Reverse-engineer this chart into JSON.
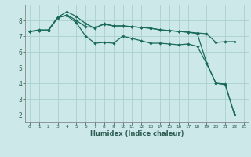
{
  "xlabel": "Humidex (Indice chaleur)",
  "bg_color": "#cce8e8",
  "grid_color": "#aacfcf",
  "line_color": "#1a6b5a",
  "xlim": [
    -0.5,
    23.5
  ],
  "ylim": [
    1.5,
    9.0
  ],
  "xticks": [
    0,
    1,
    2,
    3,
    4,
    5,
    6,
    7,
    8,
    9,
    10,
    11,
    12,
    13,
    14,
    15,
    16,
    17,
    18,
    19,
    20,
    21,
    22,
    23
  ],
  "yticks": [
    2,
    3,
    4,
    5,
    6,
    7,
    8
  ],
  "line1_x": [
    0,
    1,
    2,
    3,
    4,
    5,
    6,
    7,
    8,
    9,
    10,
    11,
    12,
    13,
    14,
    15,
    16,
    17,
    18,
    19,
    20,
    21,
    22
  ],
  "line1_y": [
    7.3,
    7.35,
    7.35,
    8.15,
    8.35,
    8.0,
    7.6,
    7.55,
    7.75,
    7.65,
    7.65,
    7.6,
    7.55,
    7.5,
    7.4,
    7.35,
    7.3,
    7.25,
    7.15,
    5.3,
    4.0,
    3.9,
    2.0
  ],
  "line2_x": [
    0,
    1,
    2,
    3,
    4,
    5,
    6,
    7,
    8,
    9,
    10,
    11,
    12,
    13,
    14,
    15,
    16,
    17,
    18,
    19,
    20,
    21,
    22
  ],
  "line2_y": [
    7.3,
    7.4,
    7.4,
    8.2,
    8.3,
    7.85,
    7.0,
    6.55,
    6.6,
    6.55,
    7.0,
    6.85,
    6.7,
    6.55,
    6.55,
    6.5,
    6.45,
    6.5,
    6.35,
    5.25,
    4.0,
    3.95,
    2.0
  ],
  "line3_x": [
    0,
    1,
    2,
    3,
    4,
    5,
    6,
    7,
    8,
    9,
    10,
    11,
    12,
    13,
    14,
    15,
    16,
    17,
    18,
    19,
    20,
    21,
    22
  ],
  "line3_y": [
    7.3,
    7.35,
    7.35,
    8.2,
    8.55,
    8.25,
    7.8,
    7.5,
    7.8,
    7.65,
    7.65,
    7.6,
    7.55,
    7.5,
    7.4,
    7.35,
    7.3,
    7.25,
    7.2,
    7.15,
    6.6,
    6.65,
    6.65
  ]
}
